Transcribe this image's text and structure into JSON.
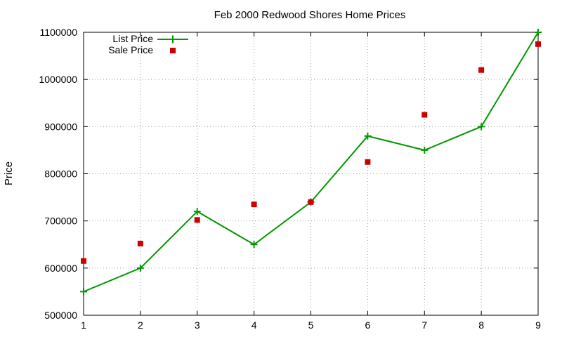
{
  "chart_data": {
    "type": "line",
    "title": "Feb 2000 Redwood Shores Home Prices",
    "xlabel": "",
    "ylabel": "Price",
    "x": [
      1,
      2,
      3,
      4,
      5,
      6,
      7,
      8,
      9
    ],
    "x_ticks": [
      "1",
      "2",
      "3",
      "4",
      "5",
      "6",
      "7",
      "8",
      "9"
    ],
    "xlim": [
      1,
      9
    ],
    "ylim": [
      500000,
      1100000
    ],
    "y_ticks": [
      "500000",
      "600000",
      "700000",
      "800000",
      "900000",
      "1000000",
      "1100000"
    ],
    "grid": true,
    "legend_position": "top-left",
    "series": [
      {
        "name": "List Price",
        "style": "line-points",
        "marker": "plus",
        "color": "#009900",
        "values": [
          550000,
          600000,
          720000,
          650000,
          740000,
          880000,
          850000,
          900000,
          1100000
        ]
      },
      {
        "name": "Sale Price",
        "style": "points",
        "marker": "square",
        "color": "#cc0000",
        "values": [
          615000,
          652000,
          702000,
          735000,
          740000,
          825000,
          925000,
          1020000,
          1075000
        ]
      }
    ]
  }
}
